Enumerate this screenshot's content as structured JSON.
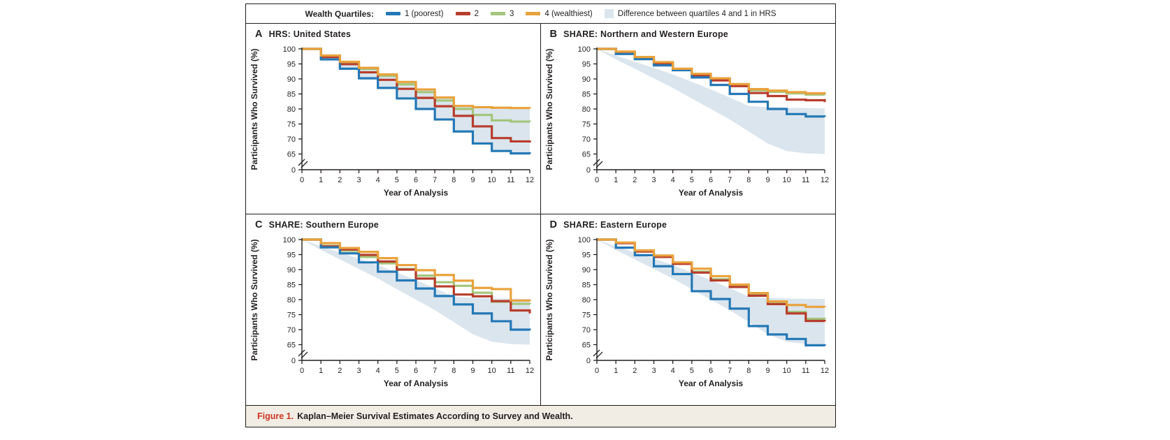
{
  "colors": {
    "q1": "#2478b5",
    "q2": "#b73d2c",
    "q3": "#a4c57c",
    "q4": "#e9a23c",
    "band": "#dbe5ee",
    "axis": "#231f20",
    "caption_red": "#cc3524",
    "caption_bg": "#f1ede4",
    "border": "#1d1d1b"
  },
  "legend": {
    "title": "Wealth Quartiles:",
    "items": [
      {
        "label": "1 (poorest)",
        "key": "q1"
      },
      {
        "label": "2",
        "key": "q2"
      },
      {
        "label": "3",
        "key": "q3"
      },
      {
        "label": "4 (wealthiest)",
        "key": "q4"
      }
    ],
    "band_item": {
      "label": "Difference between quartiles 4 and 1 in HRS",
      "key": "band"
    }
  },
  "caption": {
    "prefix": "Figure 1.",
    "text": "Kaplan–Meier Survival Estimates According to Survey and Wealth."
  },
  "chart_data": {
    "type": "line",
    "subtype": "kaplan-meier-step-curves",
    "x": [
      0,
      1,
      2,
      3,
      4,
      5,
      6,
      7,
      8,
      9,
      10,
      11,
      12
    ],
    "xlabel": "Year of Analysis",
    "ylabel": "Participants Who Survived (%)",
    "yticks": [
      100,
      95,
      90,
      85,
      80,
      75,
      70,
      65
    ],
    "ytick_zero": 0,
    "axis_break": "between 65 and 0",
    "grid": false,
    "legend_position": "top",
    "band": {
      "label": "Difference between quartiles 4 and 1 in HRS",
      "upper_hrs_q4": [
        100,
        97.8,
        95.7,
        93.7,
        91.5,
        89.0,
        86.5,
        83.8,
        81.0,
        80.6,
        80.4,
        80.3,
        80.2
      ],
      "lower_hrs_q1": [
        100,
        96.5,
        93.4,
        90.2,
        87.0,
        83.5,
        80.0,
        76.5,
        72.5,
        68.5,
        66.0,
        65.2,
        65.0
      ]
    },
    "panels": [
      {
        "label": "A",
        "title": "HRS: United States",
        "band_style": "step",
        "series": [
          {
            "name": "1 (poorest)",
            "key": "q1",
            "values": [
              100,
              96.5,
              93.4,
              90.2,
              87.0,
              83.5,
              80.0,
              76.5,
              72.5,
              68.5,
              66.0,
              65.2,
              65.0
            ]
          },
          {
            "name": "2",
            "key": "q2",
            "values": [
              100,
              97.3,
              94.9,
              92.2,
              89.7,
              86.7,
              83.7,
              80.9,
              77.7,
              74.2,
              70.3,
              69.2,
              68.8
            ]
          },
          {
            "name": "3",
            "key": "q3",
            "values": [
              100,
              97.6,
              95.4,
              93.3,
              91.0,
              88.2,
              85.6,
              82.8,
              80.0,
              78.0,
              76.2,
              75.8,
              75.7
            ]
          },
          {
            "name": "4 (wealthiest)",
            "key": "q4",
            "values": [
              100,
              97.8,
              95.7,
              93.7,
              91.5,
              89.0,
              86.5,
              83.8,
              81.0,
              80.6,
              80.4,
              80.3,
              80.2
            ]
          }
        ]
      },
      {
        "label": "B",
        "title": "SHARE: Northern and Western Europe",
        "band_style": "smooth",
        "series": [
          {
            "name": "1 (poorest)",
            "key": "q1",
            "values": [
              100,
              98.3,
              96.6,
              94.5,
              92.9,
              90.5,
              88.0,
              85.0,
              82.4,
              80.0,
              78.3,
              77.5,
              77.4
            ]
          },
          {
            "name": "2",
            "key": "q2",
            "values": [
              100,
              98.9,
              97.1,
              95.2,
              93.0,
              91.2,
              89.5,
              87.6,
              85.3,
              84.3,
              83.1,
              82.9,
              82.3
            ]
          },
          {
            "name": "3",
            "key": "q3",
            "values": [
              100,
              99.0,
              97.2,
              95.4,
              93.2,
              91.4,
              89.9,
              87.9,
              86.2,
              85.7,
              85.2,
              84.8,
              84.7
            ]
          },
          {
            "name": "4 (wealthiest)",
            "key": "q4",
            "values": [
              100,
              99.1,
              97.3,
              95.6,
              93.4,
              91.7,
              90.2,
              88.3,
              86.6,
              86.1,
              85.6,
              85.2,
              85.1
            ]
          }
        ]
      },
      {
        "label": "C",
        "title": "SHARE: Southern Europe",
        "band_style": "smooth",
        "series": [
          {
            "name": "1 (poorest)",
            "key": "q1",
            "values": [
              100,
              97.4,
              95.4,
              92.4,
              89.3,
              86.4,
              83.7,
              81.2,
              78.4,
              75.4,
              72.8,
              70.0,
              69.8
            ]
          },
          {
            "name": "2",
            "key": "q2",
            "values": [
              100,
              97.7,
              96.7,
              94.9,
              92.7,
              90.0,
              87.0,
              84.4,
              81.7,
              81.1,
              79.5,
              76.4,
              75.4
            ]
          },
          {
            "name": "3",
            "key": "q3",
            "values": [
              100,
              97.9,
              96.3,
              94.2,
              92.1,
              90.2,
              88.0,
              85.8,
              84.6,
              82.3,
              79.3,
              78.6,
              78.4
            ]
          },
          {
            "name": "4 (wealthiest)",
            "key": "q4",
            "values": [
              100,
              98.8,
              97.2,
              95.9,
              93.8,
              91.5,
              89.8,
              88.2,
              86.3,
              83.9,
              83.5,
              79.7,
              79.5
            ]
          }
        ]
      },
      {
        "label": "D",
        "title": "SHARE: Eastern Europe",
        "band_style": "smooth",
        "series": [
          {
            "name": "1 (poorest)",
            "key": "q1",
            "values": [
              100,
              97.3,
              94.8,
              91.1,
              88.5,
              82.8,
              80.2,
              77.0,
              71.2,
              68.4,
              66.9,
              64.8,
              64.6
            ]
          },
          {
            "name": "2",
            "key": "q2",
            "values": [
              100,
              98.8,
              96.0,
              94.2,
              91.9,
              89.0,
              86.4,
              84.2,
              81.3,
              78.5,
              75.4,
              72.9,
              72.7
            ]
          },
          {
            "name": "3",
            "key": "q3",
            "values": [
              100,
              98.9,
              96.2,
              94.4,
              92.1,
              89.3,
              86.8,
              84.6,
              81.7,
              78.8,
              75.9,
              73.6,
              73.5
            ]
          },
          {
            "name": "4 (wealthiest)",
            "key": "q4",
            "values": [
              100,
              99.0,
              96.4,
              94.7,
              92.4,
              90.3,
              87.8,
              85.0,
              82.2,
              79.4,
              78.2,
              77.6,
              77.5
            ]
          }
        ]
      }
    ]
  }
}
